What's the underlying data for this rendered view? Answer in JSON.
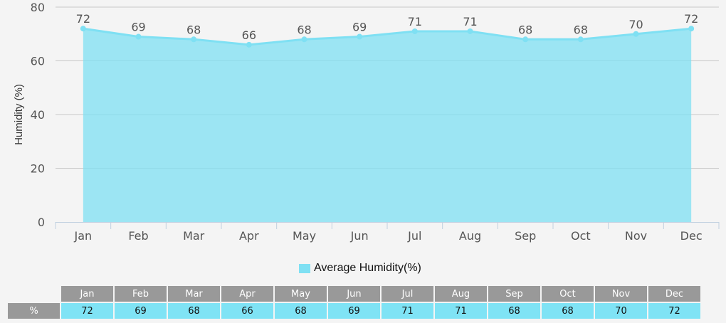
{
  "chart_data": {
    "type": "area",
    "title": "",
    "xlabel": "",
    "ylabel": "Humidity (%)",
    "categories": [
      "Jan",
      "Feb",
      "Mar",
      "Apr",
      "May",
      "Jun",
      "Jul",
      "Aug",
      "Sep",
      "Oct",
      "Nov",
      "Dec"
    ],
    "series": [
      {
        "name": "Average Humidity(%)",
        "values": [
          72,
          69,
          68,
          66,
          68,
          69,
          71,
          71,
          68,
          68,
          70,
          72
        ],
        "color": "#7fe0f3"
      }
    ],
    "ylim": [
      0,
      80
    ],
    "yticks": [
      0,
      20,
      40,
      60,
      80
    ],
    "grid": true,
    "legend_position": "bottom",
    "data_labels": true
  },
  "legend": {
    "label": "Average Humidity(%)"
  },
  "table": {
    "row_label": "%",
    "headers": [
      "Jan",
      "Feb",
      "Mar",
      "Apr",
      "May",
      "Jun",
      "Jul",
      "Aug",
      "Sep",
      "Oct",
      "Nov",
      "Dec"
    ],
    "values": [
      "72",
      "69",
      "68",
      "66",
      "68",
      "69",
      "71",
      "71",
      "68",
      "68",
      "70",
      "72"
    ]
  }
}
